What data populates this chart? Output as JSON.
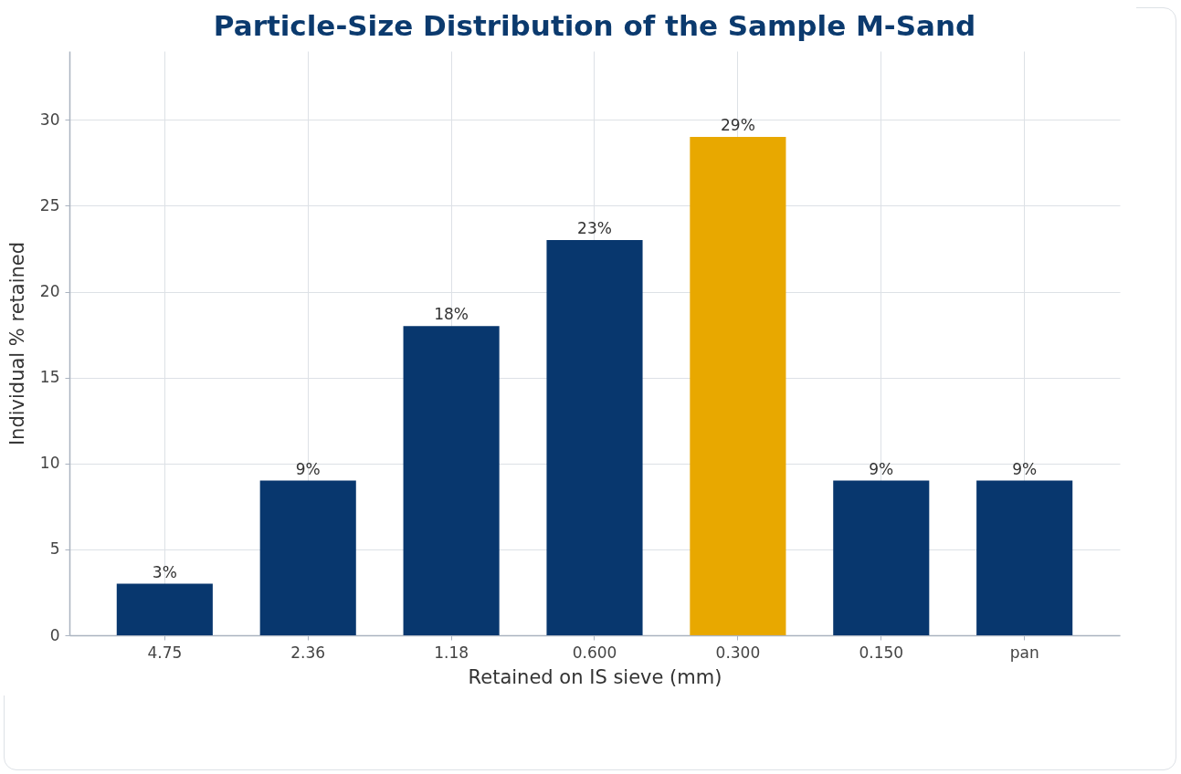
{
  "chart_data": {
    "type": "bar",
    "title": "Particle-Size Distribution of the Sample M-Sand",
    "xlabel": "Retained on IS sieve  (mm)",
    "ylabel": "Individual % retained",
    "categories": [
      "4.75",
      "2.36",
      "1.18",
      "0.600",
      "0.300",
      "0.150",
      "pan"
    ],
    "values": [
      3,
      9,
      18,
      23,
      29,
      9,
      9
    ],
    "value_labels": [
      "3%",
      "9%",
      "18%",
      "23%",
      "29%",
      "9%",
      "9%"
    ],
    "colors": [
      "#08376e",
      "#08376e",
      "#08376e",
      "#08376e",
      "#e8a800",
      "#08376e",
      "#08376e"
    ],
    "ylim": [
      0,
      34
    ],
    "yticks": [
      0,
      5,
      10,
      15,
      20,
      25,
      30
    ],
    "grid": true
  }
}
